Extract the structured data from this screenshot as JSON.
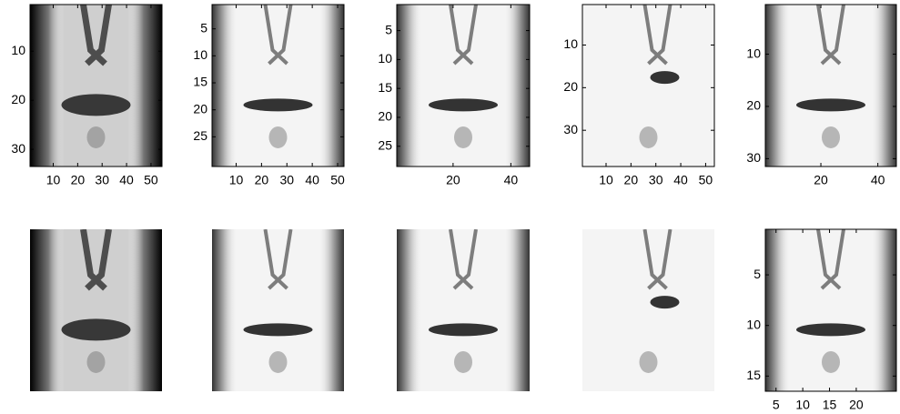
{
  "panels": [
    {
      "xlim": [
        0.5,
        54.5
      ],
      "ylim": [
        0.5,
        33.5
      ],
      "xticks": [
        10,
        20,
        30,
        40,
        50
      ],
      "yticks": [
        10,
        20,
        30
      ]
    },
    {
      "xlim": [
        0.5,
        52.5
      ],
      "ylim": [
        0.5,
        30.5
      ],
      "xticks": [
        10,
        20,
        30,
        40,
        50
      ],
      "yticks": [
        5,
        10,
        15,
        20,
        25
      ]
    },
    {
      "xlim": [
        0.5,
        46.5
      ],
      "ylim": [
        0.5,
        28.5
      ],
      "xticks": [
        20,
        40
      ],
      "yticks": [
        5,
        10,
        15,
        20,
        25
      ]
    },
    {
      "xlim": [
        0.5,
        53.5
      ],
      "ylim": [
        0.5,
        38.5
      ],
      "xticks": [
        10,
        20,
        30,
        40,
        50
      ],
      "yticks": [
        10,
        20,
        30
      ]
    },
    {
      "xlim": [
        0.5,
        46.5
      ],
      "ylim": [
        0.5,
        31.5
      ],
      "xticks": [
        20,
        40
      ],
      "yticks": [
        10,
        20,
        30
      ]
    },
    {
      "xlim": [
        3,
        27.5
      ],
      "ylim": [
        0.5,
        16.5
      ],
      "xticks": [
        5,
        10,
        15,
        20
      ],
      "yticks": [
        5,
        10,
        15
      ]
    }
  ]
}
